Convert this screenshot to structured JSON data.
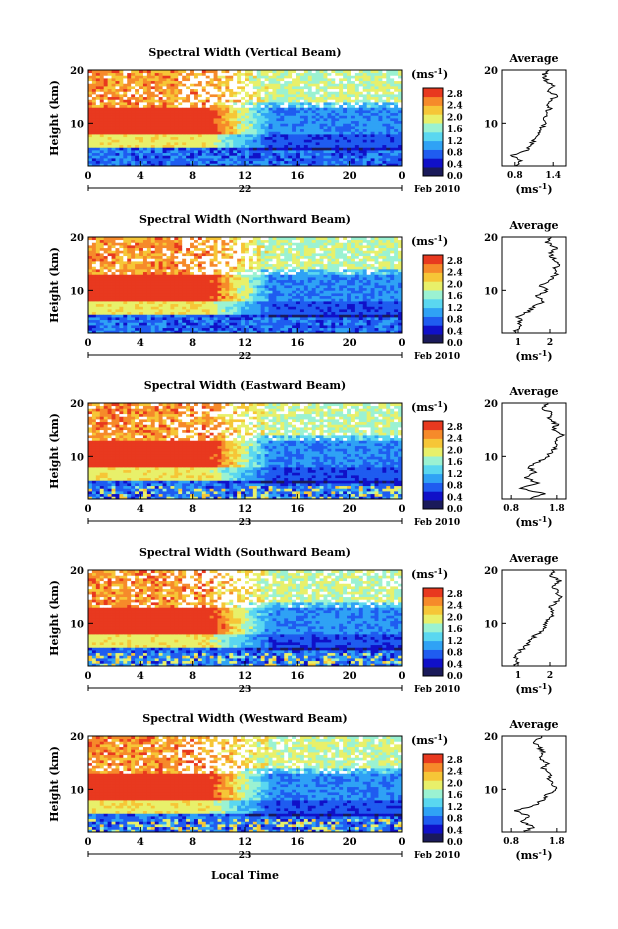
{
  "figure": {
    "xlabel": "Local Time",
    "date_label": "Feb 2010",
    "unit_label": "(ms",
    "unit_exp": "-1",
    "avg_title": "Average",
    "colormap": [
      "#1a1a5a",
      "#1010c8",
      "#1f5cf0",
      "#2fa2f5",
      "#5ad7f0",
      "#9bf2d2",
      "#e8f06a",
      "#f6c637",
      "#f68a2a",
      "#e8391f"
    ]
  },
  "chart_data": [
    {
      "type": "heatmap",
      "title": "Spectral Width (Vertical Beam)",
      "ylabel": "Height (km)",
      "xlim": [
        0,
        24
      ],
      "ylim": [
        2,
        20
      ],
      "xticks": [
        "0",
        "4",
        "8",
        "12",
        "16",
        "20",
        "0"
      ],
      "yticks": [
        "20",
        "10"
      ],
      "date_tick": "22",
      "colorbar": {
        "ticks": [
          "2.8",
          "2.4",
          "2.0",
          "1.6",
          "1.2",
          "0.8",
          "0.4",
          "0.0"
        ],
        "range": [
          0,
          3.0
        ]
      },
      "average_profile": {
        "xticks": [
          "0.8",
          "1.4"
        ],
        "xlim": [
          0.6,
          1.6
        ],
        "xlabel": "(ms",
        "height": [
          2,
          3,
          4,
          5,
          6,
          7,
          8,
          9,
          10,
          11,
          12,
          13,
          14,
          15,
          16,
          17,
          18,
          19,
          20
        ],
        "value": [
          0.8,
          0.9,
          0.75,
          1.0,
          1.05,
          1.1,
          1.15,
          1.2,
          1.3,
          1.25,
          1.3,
          1.35,
          1.3,
          1.45,
          1.35,
          1.4,
          1.3,
          1.25,
          1.3
        ]
      }
    },
    {
      "type": "heatmap",
      "title": "Spectral Width (Northward Beam)",
      "ylabel": "Height (km)",
      "xlim": [
        0,
        24
      ],
      "ylim": [
        2,
        20
      ],
      "xticks": [
        "0",
        "4",
        "8",
        "12",
        "16",
        "20",
        "0"
      ],
      "yticks": [
        "20",
        "10"
      ],
      "date_tick": "22",
      "colorbar": {
        "ticks": [
          "2.8",
          "2.4",
          "2.0",
          "1.6",
          "1.2",
          "0.8",
          "0.4",
          "0.0"
        ],
        "range": [
          0,
          3.0
        ]
      },
      "average_profile": {
        "xticks": [
          "1",
          "2"
        ],
        "xlim": [
          0.5,
          2.5
        ],
        "xlabel": "(ms",
        "height": [
          2,
          3,
          4,
          5,
          6,
          7,
          8,
          9,
          10,
          11,
          12,
          13,
          14,
          15,
          16,
          17,
          18,
          19,
          20
        ],
        "value": [
          0.9,
          1.0,
          1.1,
          1.0,
          1.3,
          1.5,
          1.8,
          1.6,
          1.9,
          1.7,
          2.0,
          2.2,
          2.1,
          2.3,
          2.1,
          2.0,
          2.2,
          1.9,
          2.0
        ]
      }
    },
    {
      "type": "heatmap",
      "title": "Spectral Width (Eastward Beam)",
      "ylabel": "Height (km)",
      "xlim": [
        0,
        24
      ],
      "ylim": [
        2,
        20
      ],
      "xticks": [
        "0",
        "4",
        "8",
        "12",
        "16",
        "20",
        "0"
      ],
      "yticks": [
        "20",
        "10"
      ],
      "date_tick": "23",
      "colorbar": {
        "ticks": [
          "2.8",
          "2.4",
          "2.0",
          "1.6",
          "1.2",
          "0.8",
          "0.4",
          "0.0"
        ],
        "range": [
          0,
          3.0
        ]
      },
      "average_profile": {
        "xticks": [
          "0.8",
          "1.8"
        ],
        "xlim": [
          0.6,
          2.0
        ],
        "xlabel": "(ms",
        "height": [
          2,
          3,
          4,
          5,
          6,
          7,
          8,
          9,
          10,
          11,
          12,
          13,
          14,
          15,
          16,
          17,
          18,
          19,
          20
        ],
        "value": [
          1.2,
          1.5,
          1.0,
          1.4,
          1.1,
          1.3,
          1.2,
          1.4,
          1.6,
          1.7,
          1.8,
          1.8,
          1.9,
          1.7,
          1.8,
          1.6,
          1.7,
          1.5,
          1.6
        ]
      }
    },
    {
      "type": "heatmap",
      "title": "Spectral Width (Southward Beam)",
      "ylabel": "Height (km)",
      "xlim": [
        0,
        24
      ],
      "ylim": [
        2,
        20
      ],
      "xticks": [
        "0",
        "4",
        "8",
        "12",
        "16",
        "20",
        "0"
      ],
      "yticks": [
        "20",
        "10"
      ],
      "date_tick": "23",
      "colorbar": {
        "ticks": [
          "2.8",
          "2.4",
          "2.0",
          "1.6",
          "1.2",
          "0.8",
          "0.4",
          "0.0"
        ],
        "range": [
          0,
          3.0
        ]
      },
      "average_profile": {
        "xticks": [
          "1",
          "2"
        ],
        "xlim": [
          0.5,
          2.5
        ],
        "xlabel": "(ms",
        "height": [
          2,
          3,
          4,
          5,
          6,
          7,
          8,
          9,
          10,
          11,
          12,
          13,
          14,
          15,
          16,
          17,
          18,
          19,
          20
        ],
        "value": [
          0.9,
          1.0,
          0.9,
          1.1,
          1.3,
          1.4,
          1.6,
          1.8,
          1.9,
          2.0,
          2.1,
          2.0,
          2.2,
          2.3,
          2.2,
          2.1,
          2.3,
          2.0,
          2.1
        ]
      }
    },
    {
      "type": "heatmap",
      "title": "Spectral Width (Westward Beam)",
      "ylabel": "Height (km)",
      "xlim": [
        0,
        24
      ],
      "ylim": [
        2,
        20
      ],
      "xticks": [
        "0",
        "4",
        "8",
        "12",
        "16",
        "20",
        "0"
      ],
      "yticks": [
        "20",
        "10"
      ],
      "date_tick": "23",
      "colorbar": {
        "ticks": [
          "2.8",
          "2.4",
          "2.0",
          "1.6",
          "1.2",
          "0.8",
          "0.4",
          "0.0"
        ],
        "range": [
          0,
          3.0
        ]
      },
      "average_profile": {
        "xticks": [
          "0.8",
          "1.8"
        ],
        "xlim": [
          0.6,
          2.0
        ],
        "xlabel": "(ms",
        "height": [
          2,
          3,
          4,
          5,
          6,
          7,
          8,
          9,
          10,
          11,
          12,
          13,
          14,
          15,
          16,
          17,
          18,
          19,
          20
        ],
        "value": [
          1.1,
          1.3,
          1.0,
          1.2,
          0.9,
          1.3,
          1.5,
          1.6,
          1.8,
          1.7,
          1.6,
          1.7,
          1.5,
          1.6,
          1.4,
          1.5,
          1.4,
          1.3,
          1.5
        ]
      }
    }
  ]
}
